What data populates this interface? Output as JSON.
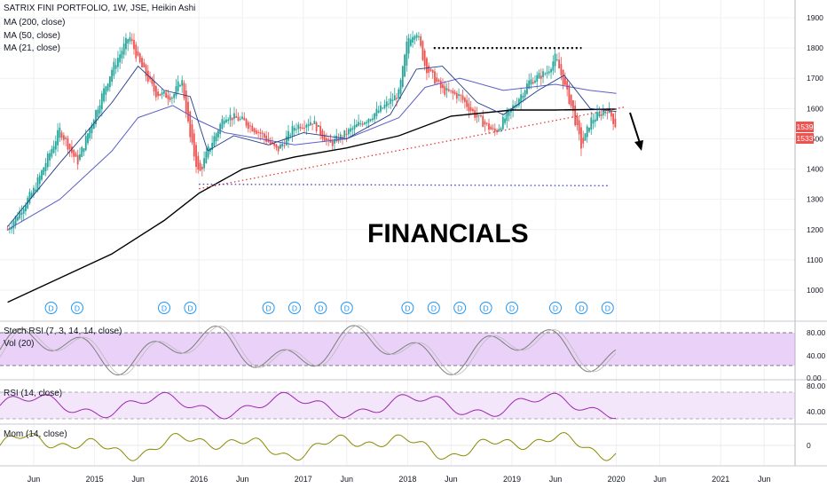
{
  "header": {
    "title": "SATRIX FINI PORTFOLIO, 1W, JSE, Heikin Ashi",
    "ma200": "MA (200, close)",
    "ma50": "MA (50, close)",
    "ma21": "MA (21, close)"
  },
  "overlay_text": "FINANCIALS",
  "chart_data": [
    {
      "type": "candlestick",
      "title": "SATRIX FINI PORTFOLIO, 1W, JSE, Heikin Ashi",
      "x_range": [
        "2014-03",
        "2021-12"
      ],
      "x_ticks": [
        "Jun",
        "2015",
        "Jun",
        "2016",
        "Jun",
        "2017",
        "Jun",
        "2018",
        "Jun",
        "2019",
        "Jun",
        "2020",
        "Jun",
        "2021",
        "Jun"
      ],
      "y_ticks": [
        1000,
        1100,
        1200,
        1300,
        1400,
        1500,
        1600,
        1700,
        1800,
        1900
      ],
      "ylim": [
        920,
        1935
      ],
      "price_series": [
        [
          "2014-03",
          1200
        ],
        [
          "2014-06",
          1330
        ],
        [
          "2014-09",
          1530
        ],
        [
          "2014-11",
          1420
        ],
        [
          "2015-01",
          1580
        ],
        [
          "2015-03",
          1730
        ],
        [
          "2015-05",
          1840
        ],
        [
          "2015-06",
          1760
        ],
        [
          "2015-08",
          1650
        ],
        [
          "2015-10",
          1640
        ],
        [
          "2015-11",
          1700
        ],
        [
          "2015-12",
          1500
        ],
        [
          "2016-01",
          1380
        ],
        [
          "2016-02",
          1460
        ],
        [
          "2016-04",
          1580
        ],
        [
          "2016-06",
          1560
        ],
        [
          "2016-08",
          1520
        ],
        [
          "2016-10",
          1460
        ],
        [
          "2016-12",
          1540
        ],
        [
          "2017-02",
          1560
        ],
        [
          "2017-04",
          1480
        ],
        [
          "2017-06",
          1520
        ],
        [
          "2017-08",
          1560
        ],
        [
          "2017-10",
          1600
        ],
        [
          "2017-12",
          1650
        ],
        [
          "2018-01",
          1830
        ],
        [
          "2018-02",
          1860
        ],
        [
          "2018-03",
          1740
        ],
        [
          "2018-05",
          1660
        ],
        [
          "2018-07",
          1640
        ],
        [
          "2018-09",
          1570
        ],
        [
          "2018-11",
          1520
        ],
        [
          "2019-01",
          1600
        ],
        [
          "2019-03",
          1690
        ],
        [
          "2019-05",
          1720
        ],
        [
          "2019-06",
          1770
        ],
        [
          "2019-08",
          1590
        ],
        [
          "2019-09",
          1470
        ],
        [
          "2019-10",
          1560
        ],
        [
          "2019-12",
          1600
        ],
        [
          "2020-01",
          1539
        ]
      ],
      "ma200": [
        [
          "2014-03",
          960
        ],
        [
          "2014-09",
          1040
        ],
        [
          "2015-03",
          1120
        ],
        [
          "2015-09",
          1230
        ],
        [
          "2016-01",
          1320
        ],
        [
          "2016-06",
          1400
        ],
        [
          "2016-12",
          1440
        ],
        [
          "2017-06",
          1470
        ],
        [
          "2017-12",
          1510
        ],
        [
          "2018-06",
          1575
        ],
        [
          "2019-01",
          1595
        ],
        [
          "2019-06",
          1595
        ],
        [
          "2020-01",
          1598
        ]
      ],
      "ma50": [
        [
          "2014-03",
          1200
        ],
        [
          "2014-09",
          1300
        ],
        [
          "2015-03",
          1460
        ],
        [
          "2015-06",
          1570
        ],
        [
          "2015-10",
          1610
        ],
        [
          "2016-01",
          1560
        ],
        [
          "2016-04",
          1520
        ],
        [
          "2016-08",
          1500
        ],
        [
          "2016-12",
          1480
        ],
        [
          "2017-06",
          1500
        ],
        [
          "2017-12",
          1570
        ],
        [
          "2018-03",
          1670
        ],
        [
          "2018-07",
          1700
        ],
        [
          "2018-12",
          1660
        ],
        [
          "2019-06",
          1680
        ],
        [
          "2019-10",
          1660
        ],
        [
          "2020-01",
          1650
        ]
      ],
      "ma21": [
        [
          "2014-03",
          1210
        ],
        [
          "2014-09",
          1420
        ],
        [
          "2015-03",
          1620
        ],
        [
          "2015-06",
          1740
        ],
        [
          "2015-09",
          1660
        ],
        [
          "2015-12",
          1640
        ],
        [
          "2016-02",
          1460
        ],
        [
          "2016-05",
          1510
        ],
        [
          "2016-09",
          1480
        ],
        [
          "2017-01",
          1520
        ],
        [
          "2017-06",
          1500
        ],
        [
          "2017-11",
          1580
        ],
        [
          "2018-02",
          1730
        ],
        [
          "2018-05",
          1740
        ],
        [
          "2018-09",
          1620
        ],
        [
          "2018-12",
          1580
        ],
        [
          "2019-04",
          1660
        ],
        [
          "2019-07",
          1710
        ],
        [
          "2019-10",
          1600
        ],
        [
          "2020-01",
          1590
        ]
      ],
      "lines": {
        "resistance_top": {
          "from": [
            "2018-04",
            1800
          ],
          "to": [
            "2019-09",
            1800
          ],
          "style": "dotted",
          "color": "#000000"
        },
        "support_trend": {
          "from": [
            "2016-01",
            1335
          ],
          "to": [
            "2020-02",
            1605
          ],
          "style": "dotted",
          "color": "#e53935"
        },
        "support_horizontal": {
          "from": [
            "2016-01",
            1350
          ],
          "to": [
            "2019-12",
            1345
          ],
          "style": "dotted",
          "color": "#3f3fbf"
        }
      },
      "price_labels": [
        "1539",
        "1533"
      ],
      "dividend_markers": [
        "2014-08",
        "2014-11",
        "2015-09",
        "2015-12",
        "2016-09",
        "2016-12",
        "2017-03",
        "2017-06",
        "2018-01",
        "2018-04",
        "2018-07",
        "2018-10",
        "2019-01",
        "2019-06",
        "2019-09",
        "2019-12"
      ],
      "dividend_label": "D"
    },
    {
      "type": "line",
      "title": "Stoch RSI (7, 3, 14, 14, close)",
      "subtitle": "Vol (20)",
      "y_ticks": [
        "80.00",
        "40.00",
        "0.00"
      ],
      "ylim": [
        0,
        100
      ],
      "band": [
        20,
        80
      ]
    },
    {
      "type": "line",
      "title": "RSI (14, close)",
      "y_ticks": [
        "80.00",
        "40.00"
      ],
      "ylim": [
        20,
        90
      ],
      "band": [
        30,
        70
      ]
    },
    {
      "type": "line",
      "title": "Mom (14, close)",
      "y_ticks": [
        "0"
      ]
    }
  ],
  "colors": {
    "up": "#26a69a",
    "down": "#ef5350",
    "ma200": "#000000",
    "ma50": "#5b5fc7",
    "ma21": "#1e3a8a",
    "stoch": "#7d7d7d",
    "stoch_band": "#e9d1f7",
    "rsi": "#9c27b0",
    "rsi_band": "#f3e6fa",
    "mom": "#8a8a00",
    "dividend": "#2196f3"
  }
}
